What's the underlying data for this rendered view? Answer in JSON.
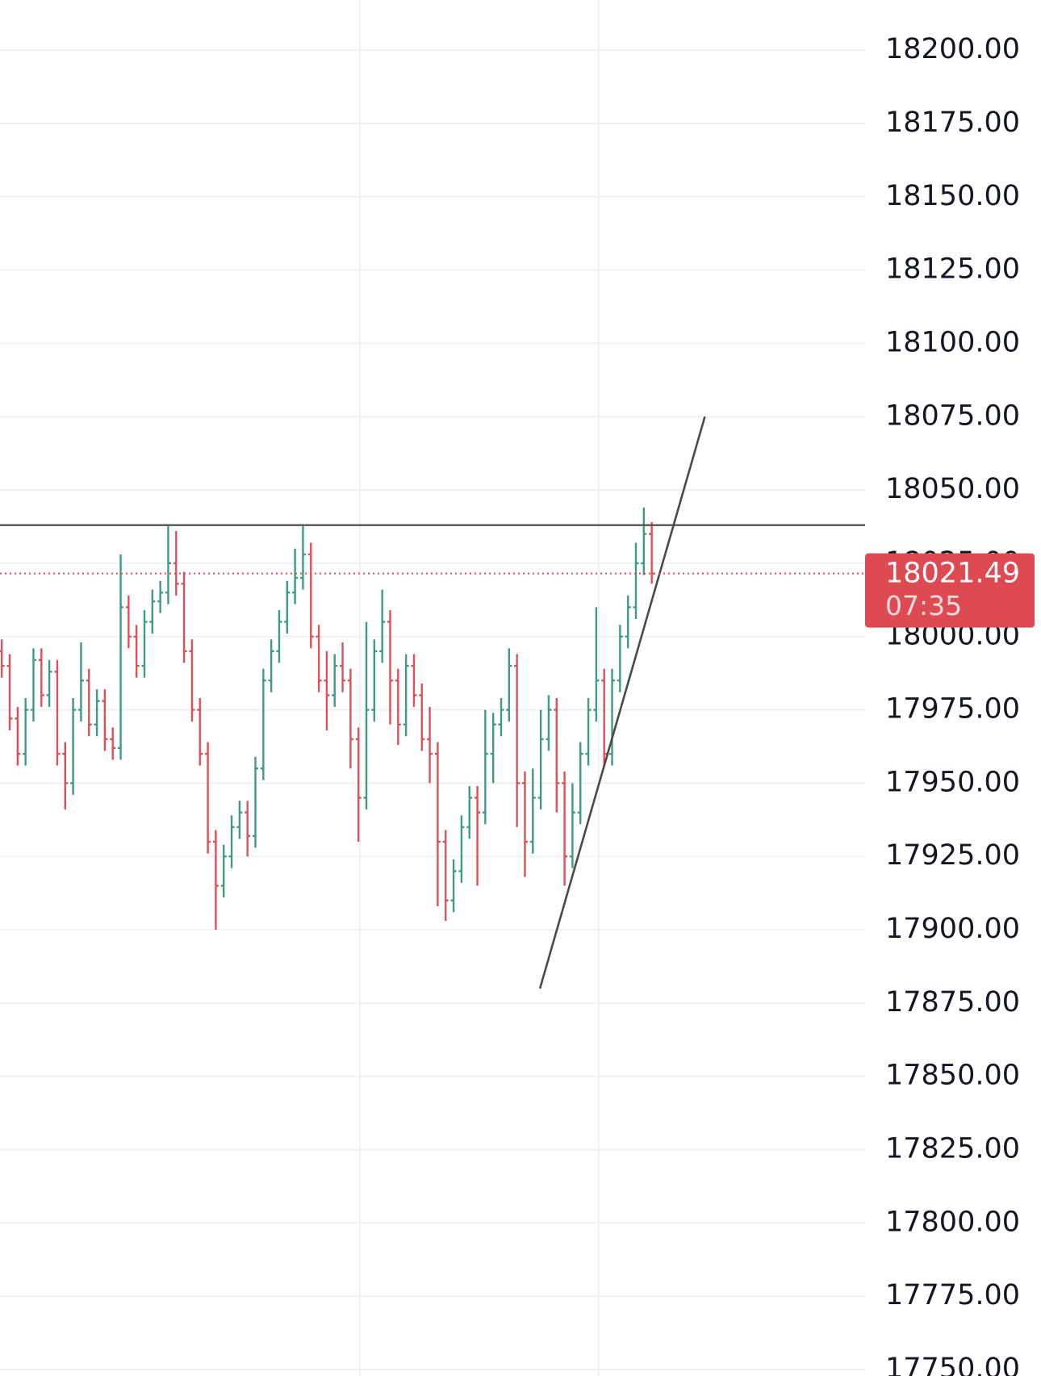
{
  "chart_data": {
    "type": "ohlc",
    "up_color": "#3f9b86",
    "down_color": "#de5158",
    "open": [
      17995,
      17990,
      17972,
      17960,
      17975,
      17992,
      17980,
      17988,
      17960,
      17950,
      17975,
      17985,
      17970,
      17978,
      17965,
      17962,
      18010,
      18000,
      17990,
      18005,
      18012,
      18015,
      18025,
      18018,
      17995,
      17975,
      17960,
      17930,
      17915,
      17925,
      17935,
      17940,
      17932,
      17955,
      17985,
      17995,
      18005,
      18015,
      18020,
      18028,
      18000,
      17985,
      17980,
      17990,
      17985,
      17965,
      17945,
      17975,
      17995,
      18005,
      17985,
      17970,
      17990,
      17980,
      17965,
      17960,
      17930,
      17910,
      17920,
      17935,
      17945,
      17940,
      17960,
      17970,
      17975,
      17990,
      17950,
      17930,
      17945,
      17965,
      17975,
      17950,
      17925,
      17940,
      17960,
      17975,
      17985,
      17960,
      17985,
      18000,
      18010,
      18025,
      18035
    ],
    "high": [
      17999,
      17994,
      17976,
      17979,
      17996,
      17996,
      17992,
      17992,
      17964,
      17979,
      17998,
      17989,
      17982,
      17982,
      17969,
      18028,
      18014,
      18004,
      18009,
      18016,
      18019,
      18038,
      18036,
      18022,
      17999,
      17979,
      17964,
      17934,
      17929,
      17939,
      17944,
      17944,
      17959,
      17989,
      17999,
      18009,
      18019,
      18030,
      18038,
      18032,
      18004,
      17995,
      17994,
      17998,
      17989,
      17969,
      18005,
      17999,
      18016,
      18009,
      17989,
      17994,
      17994,
      17984,
      17976,
      17964,
      17934,
      17924,
      17939,
      17949,
      17949,
      17975,
      17974,
      17979,
      17996,
      17994,
      17954,
      17955,
      17975,
      17980,
      17979,
      17954,
      17950,
      17964,
      17979,
      18010,
      17989,
      17989,
      18004,
      18014,
      18032,
      18044,
      18039
    ],
    "low": [
      17986,
      17968,
      17956,
      17956,
      17971,
      17976,
      17976,
      17956,
      17941,
      17946,
      17971,
      17966,
      17966,
      17961,
      17958,
      17958,
      17996,
      17986,
      17986,
      18001,
      18008,
      18011,
      18014,
      17991,
      17971,
      17956,
      17926,
      17900,
      17911,
      17921,
      17931,
      17925,
      17928,
      17951,
      17981,
      17991,
      18001,
      18011,
      18016,
      17996,
      17981,
      17968,
      17976,
      17981,
      17955,
      17930,
      17941,
      17971,
      17991,
      17970,
      17963,
      17966,
      17976,
      17961,
      17950,
      17908,
      17903,
      17906,
      17916,
      17931,
      17915,
      17936,
      17950,
      17966,
      17971,
      17935,
      17918,
      17926,
      17941,
      17961,
      17940,
      17915,
      17921,
      17936,
      17956,
      17971,
      17956,
      17956,
      17981,
      17996,
      18006,
      18021,
      18018
    ],
    "close": [
      17990,
      17972,
      17960,
      17975,
      17992,
      17980,
      17988,
      17960,
      17950,
      17975,
      17985,
      17970,
      17978,
      17965,
      17962,
      18010,
      18000,
      17990,
      18005,
      18012,
      18015,
      18025,
      18018,
      17995,
      17975,
      17960,
      17930,
      17915,
      17925,
      17935,
      17940,
      17932,
      17955,
      17985,
      17995,
      18005,
      18015,
      18020,
      18028,
      18000,
      17985,
      17980,
      17990,
      17985,
      17965,
      17945,
      17975,
      17995,
      18005,
      17985,
      17970,
      17990,
      17980,
      17965,
      17960,
      17930,
      17910,
      17920,
      17935,
      17945,
      17940,
      17960,
      17970,
      17975,
      17990,
      17950,
      17930,
      17945,
      17965,
      17975,
      17950,
      17925,
      17940,
      17960,
      17975,
      17985,
      17960,
      17985,
      18000,
      18010,
      18025,
      18035,
      18021.49
    ],
    "ylim": [
      17747.8,
      18217.1
    ],
    "yticks": [
      {
        "value": 17750,
        "label": "17750.00"
      },
      {
        "value": 17775,
        "label": "17775.00"
      },
      {
        "value": 17800,
        "label": "17800.00"
      },
      {
        "value": 17825,
        "label": "17825.00"
      },
      {
        "value": 17850,
        "label": "17850.00"
      },
      {
        "value": 17875,
        "label": "17875.00"
      },
      {
        "value": 17900,
        "label": "17900.00"
      },
      {
        "value": 17925,
        "label": "17925.00"
      },
      {
        "value": 17950,
        "label": "17950.00"
      },
      {
        "value": 17975,
        "label": "17975.00"
      },
      {
        "value": 18000,
        "label": "18000.00"
      },
      {
        "value": 18025,
        "label": "18025.00"
      },
      {
        "value": 18050,
        "label": "18050.00"
      },
      {
        "value": 18075,
        "label": "18075.00"
      },
      {
        "value": 18100,
        "label": "18100.00"
      },
      {
        "value": 18125,
        "label": "18125.00"
      },
      {
        "value": 18150,
        "label": "18150.00"
      },
      {
        "value": 18175,
        "label": "18175.00"
      },
      {
        "value": 18200,
        "label": "18200.00"
      }
    ],
    "grid": true,
    "horizontal_line": 18038,
    "trend_line": {
      "x": [
        67.9,
        88.7
      ],
      "y": [
        17880,
        18075
      ]
    },
    "last_price": 18021.49,
    "last_price_color": "#de4a52",
    "countdown": "07:35"
  }
}
